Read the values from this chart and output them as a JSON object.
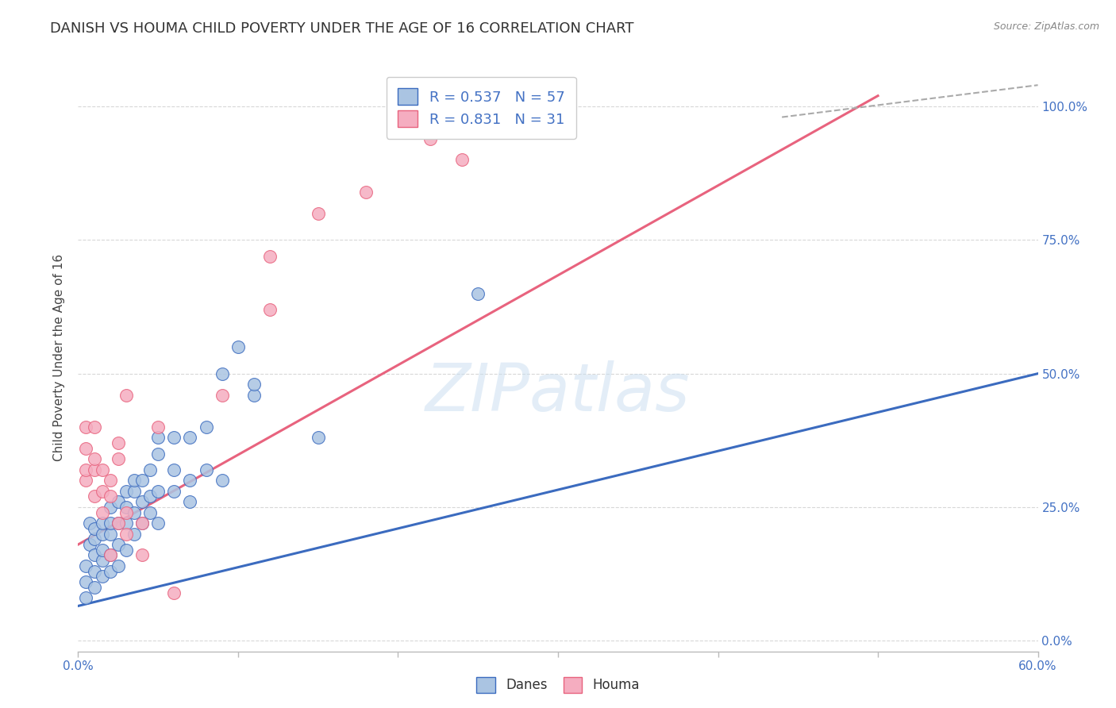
{
  "title": "DANISH VS HOUMA CHILD POVERTY UNDER THE AGE OF 16 CORRELATION CHART",
  "source": "Source: ZipAtlas.com",
  "ylabel": "Child Poverty Under the Age of 16",
  "xlim": [
    0.0,
    0.6
  ],
  "ylim": [
    -0.02,
    1.08
  ],
  "xticks": [
    0.0,
    0.1,
    0.2,
    0.3,
    0.4,
    0.5,
    0.6
  ],
  "yticks": [
    0.0,
    0.25,
    0.5,
    0.75,
    1.0
  ],
  "ytick_labels": [
    "0.0%",
    "25.0%",
    "50.0%",
    "75.0%",
    "100.0%"
  ],
  "xtick_labels": [
    "0.0%",
    "",
    "",
    "",
    "",
    "",
    "60.0%"
  ],
  "danes_R": 0.537,
  "danes_N": 57,
  "houma_R": 0.831,
  "houma_N": 31,
  "danes_color": "#aac4e2",
  "houma_color": "#f5adc0",
  "danes_line_color": "#3b6bbf",
  "houma_line_color": "#e8637e",
  "danes_scatter": [
    [
      0.005,
      0.14
    ],
    [
      0.005,
      0.11
    ],
    [
      0.005,
      0.08
    ],
    [
      0.007,
      0.18
    ],
    [
      0.007,
      0.22
    ],
    [
      0.01,
      0.1
    ],
    [
      0.01,
      0.13
    ],
    [
      0.01,
      0.16
    ],
    [
      0.01,
      0.19
    ],
    [
      0.01,
      0.21
    ],
    [
      0.015,
      0.12
    ],
    [
      0.015,
      0.15
    ],
    [
      0.015,
      0.17
    ],
    [
      0.015,
      0.2
    ],
    [
      0.015,
      0.22
    ],
    [
      0.02,
      0.13
    ],
    [
      0.02,
      0.16
    ],
    [
      0.02,
      0.2
    ],
    [
      0.02,
      0.22
    ],
    [
      0.02,
      0.25
    ],
    [
      0.025,
      0.14
    ],
    [
      0.025,
      0.18
    ],
    [
      0.025,
      0.22
    ],
    [
      0.025,
      0.26
    ],
    [
      0.03,
      0.17
    ],
    [
      0.03,
      0.22
    ],
    [
      0.03,
      0.25
    ],
    [
      0.03,
      0.28
    ],
    [
      0.035,
      0.2
    ],
    [
      0.035,
      0.24
    ],
    [
      0.035,
      0.28
    ],
    [
      0.035,
      0.3
    ],
    [
      0.04,
      0.22
    ],
    [
      0.04,
      0.26
    ],
    [
      0.04,
      0.3
    ],
    [
      0.045,
      0.24
    ],
    [
      0.045,
      0.27
    ],
    [
      0.045,
      0.32
    ],
    [
      0.05,
      0.22
    ],
    [
      0.05,
      0.28
    ],
    [
      0.05,
      0.35
    ],
    [
      0.05,
      0.38
    ],
    [
      0.06,
      0.28
    ],
    [
      0.06,
      0.32
    ],
    [
      0.06,
      0.38
    ],
    [
      0.07,
      0.26
    ],
    [
      0.07,
      0.3
    ],
    [
      0.07,
      0.38
    ],
    [
      0.08,
      0.32
    ],
    [
      0.08,
      0.4
    ],
    [
      0.09,
      0.3
    ],
    [
      0.09,
      0.5
    ],
    [
      0.1,
      0.55
    ],
    [
      0.11,
      0.46
    ],
    [
      0.11,
      0.48
    ],
    [
      0.15,
      0.38
    ],
    [
      0.25,
      0.65
    ]
  ],
  "houma_scatter": [
    [
      0.005,
      0.3
    ],
    [
      0.005,
      0.32
    ],
    [
      0.005,
      0.36
    ],
    [
      0.005,
      0.4
    ],
    [
      0.01,
      0.27
    ],
    [
      0.01,
      0.32
    ],
    [
      0.01,
      0.34
    ],
    [
      0.01,
      0.4
    ],
    [
      0.015,
      0.24
    ],
    [
      0.015,
      0.28
    ],
    [
      0.015,
      0.32
    ],
    [
      0.02,
      0.16
    ],
    [
      0.02,
      0.27
    ],
    [
      0.02,
      0.3
    ],
    [
      0.025,
      0.22
    ],
    [
      0.025,
      0.34
    ],
    [
      0.025,
      0.37
    ],
    [
      0.03,
      0.2
    ],
    [
      0.03,
      0.24
    ],
    [
      0.03,
      0.46
    ],
    [
      0.04,
      0.16
    ],
    [
      0.04,
      0.22
    ],
    [
      0.05,
      0.4
    ],
    [
      0.06,
      0.09
    ],
    [
      0.09,
      0.46
    ],
    [
      0.12,
      0.62
    ],
    [
      0.12,
      0.72
    ],
    [
      0.15,
      0.8
    ],
    [
      0.18,
      0.84
    ],
    [
      0.22,
      0.94
    ],
    [
      0.24,
      0.9
    ]
  ],
  "danes_line": [
    [
      0.0,
      0.065
    ],
    [
      0.6,
      0.5
    ]
  ],
  "houma_line": [
    [
      0.0,
      0.18
    ],
    [
      0.5,
      1.02
    ]
  ],
  "watermark_text": "ZIPatlas",
  "background_color": "#ffffff",
  "grid_color": "#d8d8d8",
  "title_fontsize": 13,
  "axis_label_fontsize": 11,
  "tick_fontsize": 11,
  "legend_fontsize": 13
}
